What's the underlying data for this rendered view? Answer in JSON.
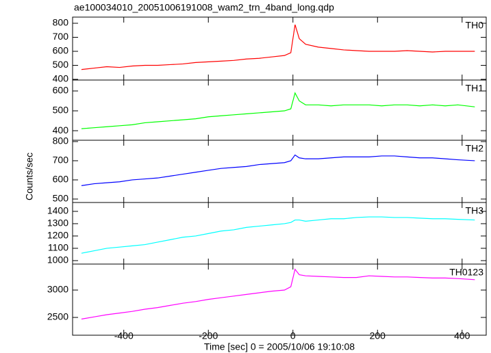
{
  "chart_data": {
    "type": "line",
    "title": "ae100034010_20051006191008_wam2_trn_4band_long.qdp",
    "xlabel": "Time [sec] 0 = 2005/10/06 19:10:08",
    "ylabel": "Counts/sec",
    "xlim": [
      -521,
      457
    ],
    "xticks": [
      -400,
      -200,
      0,
      200,
      400
    ],
    "x": [
      -500,
      -470,
      -440,
      -410,
      -380,
      -350,
      -320,
      -290,
      -260,
      -230,
      -200,
      -170,
      -140,
      -110,
      -80,
      -50,
      -20,
      -5,
      5,
      15,
      30,
      60,
      90,
      120,
      150,
      180,
      210,
      240,
      270,
      300,
      330,
      360,
      390,
      430
    ],
    "series": [
      {
        "name": "TH0",
        "color": "#ff0000",
        "ylim": [
          395,
          844
        ],
        "yticks": [
          400,
          500,
          600,
          700,
          800
        ],
        "values": [
          470,
          480,
          490,
          485,
          495,
          500,
          500,
          505,
          510,
          520,
          525,
          530,
          535,
          545,
          550,
          560,
          570,
          590,
          790,
          690,
          650,
          630,
          620,
          610,
          605,
          600,
          600,
          600,
          605,
          600,
          595,
          600,
          600,
          600
        ]
      },
      {
        "name": "TH1",
        "color": "#00ff00",
        "ylim": [
          352,
          655
        ],
        "yticks": [
          400,
          500,
          600
        ],
        "values": [
          410,
          415,
          420,
          425,
          430,
          440,
          445,
          450,
          455,
          460,
          470,
          475,
          480,
          485,
          490,
          495,
          500,
          510,
          590,
          550,
          530,
          530,
          525,
          530,
          530,
          530,
          525,
          530,
          530,
          525,
          530,
          525,
          530,
          520
        ]
      },
      {
        "name": "TH2",
        "color": "#0000ff",
        "ylim": [
          482,
          807
        ],
        "yticks": [
          500,
          600,
          700,
          800
        ],
        "values": [
          570,
          580,
          585,
          590,
          600,
          605,
          610,
          620,
          630,
          640,
          650,
          660,
          665,
          670,
          680,
          685,
          690,
          700,
          730,
          715,
          710,
          710,
          715,
          720,
          720,
          720,
          725,
          725,
          720,
          715,
          715,
          710,
          705,
          700
        ]
      },
      {
        "name": "TH3",
        "color": "#00ffff",
        "ylim": [
          972,
          1472
        ],
        "yticks": [
          1000,
          1100,
          1200,
          1300,
          1400
        ],
        "values": [
          1060,
          1080,
          1100,
          1110,
          1120,
          1130,
          1150,
          1170,
          1190,
          1200,
          1220,
          1240,
          1250,
          1270,
          1280,
          1290,
          1300,
          1310,
          1330,
          1330,
          1320,
          1330,
          1340,
          1340,
          1350,
          1355,
          1355,
          1350,
          1350,
          1345,
          1340,
          1340,
          1335,
          1330
        ]
      },
      {
        "name": "TH0123",
        "color": "#ff00ff",
        "ylim": [
          2175,
          3475
        ],
        "yticks": [
          2500,
          3000
        ],
        "values": [
          2470,
          2510,
          2550,
          2580,
          2610,
          2650,
          2680,
          2720,
          2760,
          2790,
          2830,
          2860,
          2890,
          2920,
          2950,
          2980,
          3000,
          3060,
          3380,
          3280,
          3260,
          3250,
          3240,
          3230,
          3230,
          3260,
          3250,
          3240,
          3240,
          3230,
          3220,
          3220,
          3210,
          3190
        ]
      }
    ]
  }
}
